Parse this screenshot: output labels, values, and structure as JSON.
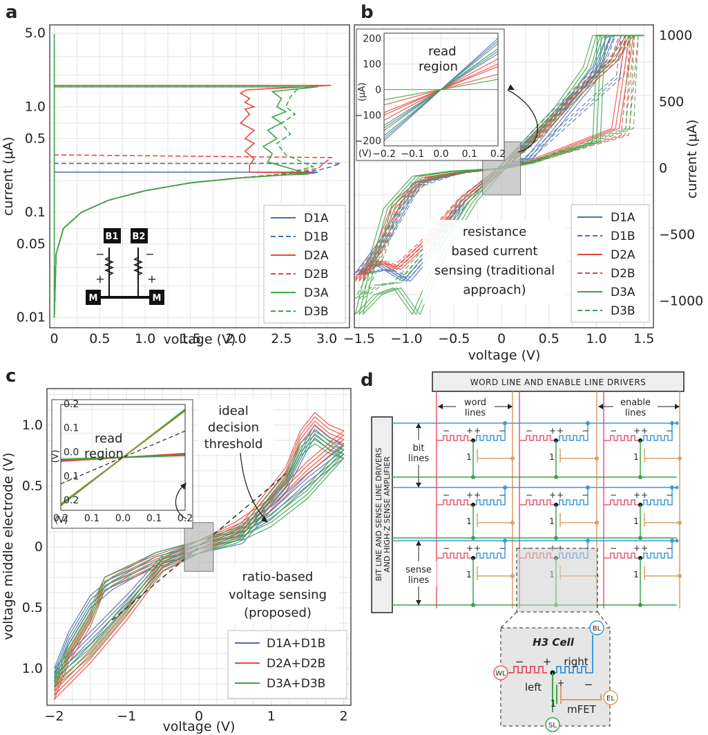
{
  "panels": {
    "a": "a",
    "b": "b",
    "c": "c",
    "d": "d"
  },
  "colors": {
    "d1": "#4a6fb0",
    "d2": "#e8453c",
    "d3": "#3aa547",
    "cellpink": "#e85a6a",
    "cellblue": "#3d9ad8",
    "cellorange": "#d9a066",
    "cellgreen": "#3aa547"
  },
  "chart_data": [
    {
      "panel": "a",
      "type": "line",
      "title": "",
      "xlabel": "voltage (V)",
      "ylabel": "current (μA)",
      "yscale": "log",
      "xlim": [
        -0.05,
        3.25
      ],
      "ylim": [
        0.008,
        6.0
      ],
      "xticks": [
        "0",
        "0.5",
        "1.0",
        "1.5",
        "2.0",
        "2.5",
        "3.0"
      ],
      "xtick_values": [
        0,
        0.5,
        1.0,
        1.5,
        2.0,
        2.5,
        3.0
      ],
      "yticks": [
        "0.01",
        "0.05",
        "0.1",
        "0.5",
        "1.0",
        "5.0"
      ],
      "ytick_values": [
        0.01,
        0.05,
        0.1,
        0.5,
        1.0,
        5.0
      ],
      "legend": {
        "position": "bottom-right",
        "entries": [
          "D1A",
          "D1B",
          "D2A",
          "D2B",
          "D3A",
          "D3B"
        ]
      },
      "inset_labels": {
        "b1": "B1",
        "b2": "B2",
        "m": "M",
        "plus": "+",
        "minus": "−"
      },
      "series": [
        {
          "name": "D1A",
          "style": "solid",
          "color": "#4a6fb0",
          "x": [
            0,
            0.02,
            0.1,
            0.3,
            0.6,
            1.0,
            1.5,
            2.0,
            2.5,
            2.85,
            2.9,
            0
          ],
          "y": [
            0.01,
            0.04,
            0.07,
            0.1,
            0.13,
            0.16,
            0.19,
            0.21,
            0.225,
            0.235,
            0.24,
            0.24
          ]
        },
        {
          "name": "D1B",
          "style": "dashed",
          "color": "#4a6fb0",
          "x": [
            0,
            0.02,
            0.1,
            0.3,
            0.6,
            1.0,
            1.5,
            2.0,
            2.5,
            2.9,
            3.05,
            3.15,
            0
          ],
          "y": [
            0.01,
            0.04,
            0.07,
            0.1,
            0.13,
            0.16,
            0.19,
            0.21,
            0.23,
            0.25,
            0.27,
            0.29,
            0.29
          ]
        },
        {
          "name": "D2A",
          "style": "solid",
          "color": "#e8453c",
          "x": [
            0,
            0.02,
            0.1,
            0.3,
            0.6,
            1.0,
            1.5,
            2.0,
            2.5,
            2.85,
            2.15,
            2.15,
            2.2,
            2.1,
            2.2,
            2.1,
            2.2,
            2.05,
            2.15,
            2.1,
            2.2,
            2.1,
            2.15,
            2.05,
            2.12,
            3.05,
            0
          ],
          "y": [
            0.01,
            0.04,
            0.07,
            0.1,
            0.13,
            0.16,
            0.19,
            0.21,
            0.225,
            0.235,
            0.24,
            0.28,
            0.32,
            0.38,
            0.45,
            0.5,
            0.6,
            0.7,
            0.85,
            0.95,
            1.0,
            1.1,
            1.2,
            1.35,
            1.45,
            1.6,
            1.6
          ]
        },
        {
          "name": "D2B",
          "style": "dashed",
          "color": "#e8453c",
          "x": [
            0,
            0.02,
            0.1,
            0.3,
            0.6,
            1.0,
            1.5,
            2.0,
            2.5,
            2.9,
            3.05,
            0
          ],
          "y": [
            0.01,
            0.04,
            0.07,
            0.1,
            0.13,
            0.16,
            0.19,
            0.21,
            0.23,
            0.26,
            0.33,
            0.35
          ]
        },
        {
          "name": "D3A",
          "style": "solid",
          "color": "#3aa547",
          "x": [
            0,
            0.02,
            0.1,
            0.3,
            0.6,
            1.0,
            1.5,
            2.0,
            2.5,
            2.8,
            2.6,
            2.35,
            2.4,
            2.3,
            2.45,
            2.35,
            2.5,
            2.4,
            2.55,
            2.45,
            2.5,
            2.4,
            2.9,
            0,
            0,
            0
          ],
          "y": [
            0.01,
            0.04,
            0.07,
            0.1,
            0.13,
            0.16,
            0.19,
            0.21,
            0.225,
            0.23,
            0.26,
            0.3,
            0.36,
            0.42,
            0.5,
            0.6,
            0.7,
            0.8,
            0.9,
            1.0,
            1.2,
            1.4,
            1.55,
            1.55,
            4.9,
            0.01
          ]
        },
        {
          "name": "D3B",
          "style": "dashed",
          "color": "#3aa547",
          "x": [
            0,
            0.02,
            0.1,
            0.3,
            0.6,
            1.0,
            1.5,
            2.0,
            2.5,
            2.85,
            2.55,
            2.45,
            2.6,
            2.5,
            2.65,
            2.55,
            2.6,
            2.7,
            0
          ],
          "y": [
            0.01,
            0.04,
            0.07,
            0.1,
            0.13,
            0.16,
            0.19,
            0.21,
            0.23,
            0.27,
            0.35,
            0.45,
            0.55,
            0.7,
            0.85,
            1.0,
            1.25,
            1.55,
            1.55
          ]
        }
      ]
    },
    {
      "panel": "b",
      "type": "line",
      "title": "",
      "xlabel": "voltage (V)",
      "ylabel": "current (μA)",
      "xlim": [
        -1.55,
        1.6
      ],
      "ylim": [
        -1200,
        1080
      ],
      "xticks": [
        "−1.5",
        "−1.0",
        "−0.5",
        "0",
        "0.5",
        "1.0",
        "1.5"
      ],
      "xtick_values": [
        -1.5,
        -1.0,
        -0.5,
        0,
        0.5,
        1.0,
        1.5
      ],
      "yticks": [
        "1000",
        "500",
        "0",
        "−500",
        "−1000"
      ],
      "ytick_values": [
        1000,
        500,
        0,
        -500,
        -1000
      ],
      "annotation": "resistance based current sensing (traditional approach)",
      "annotation_lines": [
        "resistance",
        "based current",
        "sensing (traditional",
        "approach)"
      ],
      "legend": {
        "position": "bottom-right",
        "entries": [
          "D1A",
          "D1B",
          "D2A",
          "D2B",
          "D3A",
          "D3B"
        ]
      },
      "read_region": {
        "x": [
          -0.2,
          0.2
        ],
        "y": [
          -200,
          200
        ]
      },
      "inset": {
        "title_lines": [
          "read",
          "region"
        ],
        "xlim": [
          -0.2,
          0.2
        ],
        "ylim": [
          -220,
          220
        ],
        "xticks": [
          "−0.2",
          "−0.1",
          "0.0",
          "0.1",
          "0.2"
        ],
        "xtick_values": [
          -0.2,
          -0.1,
          0.0,
          0.1,
          0.2
        ],
        "yticks": [
          "200",
          "100",
          "0",
          "−100",
          "−200"
        ],
        "ytick_values": [
          200,
          100,
          0,
          -100,
          -200
        ],
        "ylabel": "(μA)",
        "xunit": "(V)",
        "slopes": [
          {
            "color": "#4a6fb0",
            "values": [
              700,
              800,
              950,
              1000
            ]
          },
          {
            "color": "#e8453c",
            "values": [
              300,
              450,
              500,
              600
            ]
          },
          {
            "color": "#3aa547",
            "values": [
              0,
              200,
              750,
              900
            ]
          }
        ]
      },
      "series": [
        {
          "name": "D1A",
          "style": "solid",
          "color": "#4a6fb0",
          "x": [
            -1.5,
            -1.3,
            -1.0,
            -0.7,
            -0.4,
            0,
            0.4,
            0.8,
            1.0,
            1.1,
            1.15,
            0.95,
            0.3,
            0,
            -0.4,
            -0.9,
            -1.2,
            -1.5
          ],
          "y": [
            -780,
            -720,
            -850,
            -600,
            -260,
            0,
            280,
            580,
            760,
            980,
            1000,
            650,
            80,
            0,
            -30,
            -110,
            -500,
            -790
          ]
        },
        {
          "name": "D1B",
          "style": "dashed",
          "color": "#4a6fb0",
          "x": [
            -1.5,
            -1.2,
            -1.0,
            -0.7,
            -0.4,
            0,
            0.4,
            0.8,
            1.1,
            1.2,
            1.3,
            1.25,
            0.3,
            0,
            -0.5,
            -0.9,
            -1.2,
            -1.5
          ],
          "y": [
            -800,
            -760,
            -820,
            -570,
            -230,
            0,
            300,
            600,
            800,
            1000,
            1000,
            700,
            90,
            0,
            -40,
            -140,
            -520,
            -800
          ]
        },
        {
          "name": "D2A",
          "style": "solid",
          "color": "#e8453c",
          "x": [
            -1.5,
            -1.3,
            -1.1,
            -0.8,
            -0.4,
            0,
            0.4,
            0.8,
            1.2,
            1.3,
            1.35,
            1.2,
            0.3,
            0,
            -0.4,
            -0.8,
            -1.1,
            -1.3,
            -1.5
          ],
          "y": [
            -820,
            -700,
            -760,
            -560,
            -230,
            0,
            260,
            560,
            820,
            1000,
            1000,
            300,
            50,
            0,
            -25,
            -70,
            -250,
            -620,
            -830
          ]
        },
        {
          "name": "D2B",
          "style": "dashed",
          "color": "#e8453c",
          "x": [
            -1.5,
            -1.3,
            -1.1,
            -0.8,
            -0.4,
            0,
            0.4,
            0.8,
            1.2,
            1.35,
            1.4,
            1.3,
            0.3,
            0,
            -0.4,
            -0.8,
            -1.1,
            -1.3,
            -1.5
          ],
          "y": [
            -840,
            -690,
            -740,
            -540,
            -220,
            0,
            270,
            580,
            850,
            1000,
            1000,
            250,
            45,
            0,
            -30,
            -90,
            -280,
            -660,
            -850
          ]
        },
        {
          "name": "D3A",
          "style": "solid",
          "color": "#3aa547",
          "x": [
            -1.5,
            -1.3,
            -1.1,
            -0.9,
            -0.6,
            -0.3,
            0,
            0.3,
            0.6,
            0.9,
            1.0,
            1.05,
            1.0,
            0.3,
            0,
            -0.5,
            -0.9,
            -1.2,
            -1.4,
            -1.5
          ],
          "y": [
            -1100,
            -950,
            -900,
            -1100,
            -600,
            -250,
            0,
            230,
            460,
            760,
            1000,
            1000,
            200,
            40,
            0,
            -20,
            -60,
            -300,
            -800,
            -1100
          ]
        },
        {
          "name": "D3B",
          "style": "dashed",
          "color": "#3aa547",
          "x": [
            -1.5,
            -1.3,
            -1.1,
            -0.8,
            -0.4,
            0,
            0.4,
            0.8,
            1.2,
            1.35,
            1.4,
            1.35,
            0.3,
            0,
            -0.4,
            -0.8,
            -1.1,
            -1.3,
            -1.5
          ],
          "y": [
            -980,
            -880,
            -860,
            -620,
            -260,
            0,
            250,
            560,
            830,
            1000,
            1000,
            300,
            45,
            0,
            -25,
            -80,
            -320,
            -700,
            -980
          ]
        }
      ]
    },
    {
      "panel": "c",
      "type": "line",
      "title": "",
      "xlabel": "voltage (V)",
      "ylabel": "voltage middle electrode (V)",
      "xlim": [
        -2.1,
        2.1
      ],
      "ylim": [
        -1.3,
        1.3
      ],
      "xticks": [
        "−2",
        "−1",
        "0",
        "1",
        "2"
      ],
      "xtick_values": [
        -2,
        -1,
        0,
        1,
        2
      ],
      "yticks": [
        "1.0",
        "0.5",
        "0",
        "0.5",
        "1.0"
      ],
      "ytick_values": [
        1.0,
        0.5,
        0,
        -0.5,
        -1.0
      ],
      "annotation_lines": [
        "ratio-based",
        "voltage sensing",
        "(proposed)"
      ],
      "threshold_label_lines": [
        "ideal",
        "decision",
        "threshold"
      ],
      "threshold": {
        "x": [
          -1.2,
          1.2
        ],
        "y": [
          -0.6,
          0.6
        ]
      },
      "legend": {
        "position": "bottom-right",
        "entries": [
          "D1A+D1B",
          "D2A+D2B",
          "D3A+D3B"
        ]
      },
      "read_region": {
        "x": [
          -0.2,
          0.2
        ],
        "y": [
          -0.2,
          0.2
        ]
      },
      "inset": {
        "title_lines": [
          "read",
          "region"
        ],
        "xlim": [
          -0.2,
          0.2
        ],
        "ylim": [
          -0.22,
          0.22
        ],
        "xticks": [
          "0.2",
          "0.1",
          "0.0",
          "0.1",
          "0.2"
        ],
        "xtick_values": [
          -0.2,
          -0.1,
          0.0,
          0.1,
          0.2
        ],
        "yticks": [
          "0.2",
          "0.1",
          "0.0",
          "0.1",
          "0.2"
        ],
        "ytick_values": [
          0.2,
          0.1,
          0.0,
          -0.1,
          -0.2
        ],
        "ylabel": "(V)",
        "xunit": "(V)",
        "lines": [
          {
            "color": "#3aa547",
            "slope": 1.0
          },
          {
            "color": "#a08a3c",
            "slope": 0.97
          },
          {
            "color": "#4a6fb0",
            "slope": 0.06
          },
          {
            "color": "#e8453c",
            "slope": 0.08
          },
          {
            "color": "#3aa547",
            "slope": 0.04
          }
        ],
        "threshold_slope": 0.55
      },
      "series": [
        {
          "name": "D1A+D1B",
          "color": "#4a6fb0",
          "x": [
            -2.0,
            -1.8,
            -1.5,
            -1.2,
            -0.6,
            0,
            0.6,
            1.2,
            1.5,
            1.6,
            1.8,
            2.0,
            1.5,
            1.0,
            0.5,
            0,
            -0.5,
            -1.0,
            -1.5,
            -2.0
          ],
          "y": [
            -1.05,
            -0.75,
            -0.45,
            -0.3,
            -0.1,
            0,
            0.08,
            0.5,
            0.85,
            0.95,
            0.85,
            0.78,
            0.55,
            0.28,
            0.1,
            0,
            -0.12,
            -0.45,
            -0.75,
            -1.05
          ]
        },
        {
          "name": "D2A+D2B",
          "color": "#e8453c",
          "x": [
            -2.0,
            -1.8,
            -1.5,
            -1.3,
            -0.6,
            0,
            0.6,
            1.2,
            1.4,
            1.6,
            1.8,
            2.0,
            1.5,
            1.0,
            0.5,
            0,
            -0.5,
            -1.0,
            -1.5,
            -2.0
          ],
          "y": [
            -1.2,
            -0.9,
            -0.6,
            -0.3,
            -0.12,
            0,
            0.15,
            0.6,
            0.9,
            1.05,
            0.95,
            0.9,
            0.65,
            0.35,
            0.15,
            0,
            -0.15,
            -0.55,
            -0.9,
            -1.2
          ]
        },
        {
          "name": "D3A+D3B",
          "color": "#3aa547",
          "x": [
            -2.0,
            -1.8,
            -1.5,
            -1.3,
            -0.6,
            0,
            0.6,
            1.2,
            1.4,
            1.6,
            1.8,
            2.0,
            1.5,
            1.0,
            0.5,
            0,
            -0.5,
            -1.0,
            -1.5,
            -2.0
          ],
          "y": [
            -1.1,
            -0.85,
            -0.55,
            -0.3,
            -0.1,
            0,
            0.12,
            0.55,
            0.8,
            0.9,
            0.82,
            0.78,
            0.45,
            0.22,
            0.08,
            0,
            -0.14,
            -0.5,
            -0.85,
            -1.1
          ]
        }
      ]
    }
  ],
  "diagram_d": {
    "driver_top": "WORD LINE AND ENABLE LINE DRIVERS",
    "driver_left_line1": "BIT LINE AND SENSE LINE DRIVERS",
    "driver_left_line2": "AND HIGH-Z SENSE AMPLIFIER",
    "word_lines": "word\nlines",
    "word_lines_l1": "word",
    "word_lines_l2": "lines",
    "enable_lines_l1": "enable",
    "enable_lines_l2": "lines",
    "bit_lines_l1": "bit",
    "bit_lines_l2": "lines",
    "sense_lines_l1": "sense",
    "sense_lines_l2": "lines",
    "cell_minus": "−",
    "cell_plus": "+",
    "cell_one": "1",
    "detail": {
      "title": "H3 Cell",
      "left": "left",
      "right": "right",
      "mfet": "mFET",
      "wl": "WL",
      "bl": "BL",
      "el": "EL",
      "sl": "SL"
    }
  }
}
